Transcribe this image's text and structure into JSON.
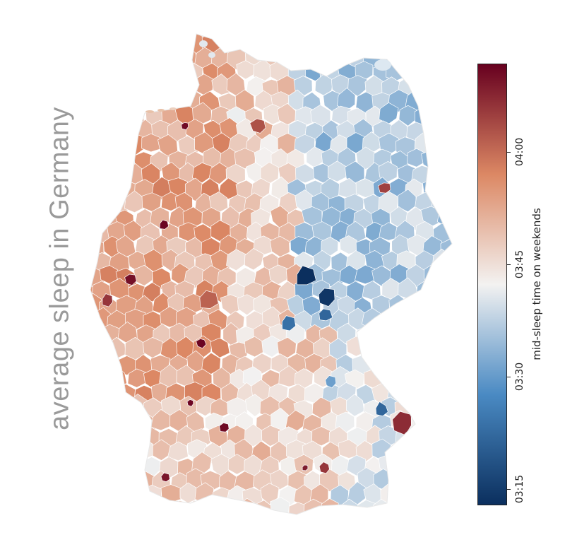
{
  "title": "average sleep in Germany",
  "map": {
    "region": "Germany",
    "unit": "districts",
    "color_scale": "diverging blue-white-red"
  },
  "legend": {
    "label": "mid-sleep time on weekends",
    "ticks": [
      "03:15",
      "03:30",
      "03:45",
      "04:00"
    ],
    "range": [
      "03:10",
      "04:08"
    ],
    "colors": {
      "low": "#0b2f5e",
      "mid_low": "#4a8ac3",
      "neutral": "#f3f2f1",
      "mid_high": "#dc8864",
      "high": "#67001f"
    }
  }
}
